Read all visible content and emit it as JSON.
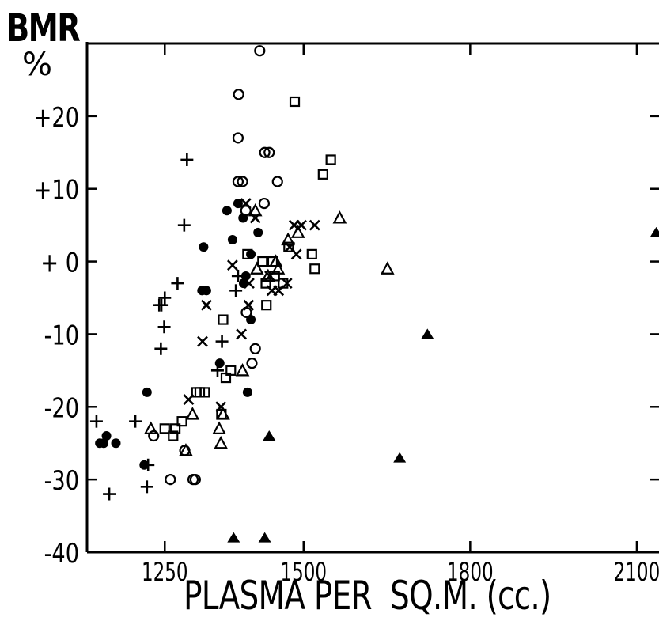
{
  "chart_data": {
    "type": "scatter",
    "ylabel": "BMR",
    "yunit": "%",
    "xlabel": "PLASMA PER  SQ.M. (cc.)",
    "xlim": [
      1110,
      2140
    ],
    "ylim": [
      -40,
      30
    ],
    "xticks": [
      1250,
      1500,
      1800,
      2100
    ],
    "xtick_labels": [
      "1250",
      "1500",
      "1800",
      "2100"
    ],
    "yticks": [
      20,
      10,
      0,
      -10,
      -20,
      -30,
      -40
    ],
    "ytick_labels": [
      "+20",
      "+10",
      "+ 0",
      "-10",
      "-20",
      "-30",
      "-40"
    ],
    "series": [
      {
        "marker": "plus",
        "points": [
          [
            1127,
            -22
          ],
          [
            1150,
            -32
          ],
          [
            1197,
            -22
          ],
          [
            1220,
            -28
          ],
          [
            1218,
            -31
          ],
          [
            1240,
            -6
          ],
          [
            1244,
            -6
          ],
          [
            1250,
            -5
          ],
          [
            1243,
            -12
          ],
          [
            1249,
            -9
          ],
          [
            1290,
            14
          ],
          [
            1285,
            5
          ],
          [
            1273,
            -3
          ],
          [
            1353,
            -11
          ],
          [
            1345,
            -15
          ],
          [
            1378,
            -4
          ],
          [
            1382,
            -2
          ]
        ]
      },
      {
        "marker": "filled-circle",
        "points": [
          [
            1133,
            -25
          ],
          [
            1140,
            -25
          ],
          [
            1145,
            -24
          ],
          [
            1162,
            -25
          ],
          [
            1213,
            -28
          ],
          [
            1218,
            -18
          ],
          [
            1320,
            2
          ],
          [
            1317,
            -4
          ],
          [
            1325,
            -4
          ],
          [
            1349,
            -14
          ],
          [
            1362,
            7
          ],
          [
            1382,
            8
          ],
          [
            1372,
            3
          ],
          [
            1391,
            6
          ],
          [
            1396,
            -2
          ],
          [
            1405,
            1
          ],
          [
            1405,
            -8
          ],
          [
            1418,
            4
          ],
          [
            1392,
            -3
          ],
          [
            1399,
            -18
          ]
        ]
      },
      {
        "marker": "circle",
        "points": [
          [
            1230,
            -24
          ],
          [
            1260,
            -30
          ],
          [
            1286,
            -26
          ],
          [
            1301,
            -30
          ],
          [
            1305,
            -30
          ],
          [
            1383,
            23
          ],
          [
            1382,
            17
          ],
          [
            1382,
            11
          ],
          [
            1390,
            11
          ],
          [
            1396,
            7
          ],
          [
            1397,
            -7
          ],
          [
            1421,
            29
          ],
          [
            1430,
            15
          ],
          [
            1438,
            15
          ],
          [
            1453,
            11
          ],
          [
            1429,
            8
          ],
          [
            1413,
            -12
          ],
          [
            1407,
            -14
          ]
        ]
      },
      {
        "marker": "cross",
        "points": [
          [
            1293,
            -19
          ],
          [
            1325,
            -6
          ],
          [
            1318,
            -11
          ],
          [
            1351,
            -20
          ],
          [
            1372,
            -0.5
          ],
          [
            1388,
            -10
          ],
          [
            1396,
            8
          ],
          [
            1401,
            -6
          ],
          [
            1402,
            -3
          ],
          [
            1413,
            6
          ],
          [
            1439,
            -2
          ],
          [
            1443,
            -4
          ],
          [
            1455,
            -4
          ],
          [
            1470,
            -3
          ],
          [
            1475,
            2
          ],
          [
            1483,
            5
          ],
          [
            1487,
            1
          ],
          [
            1496,
            5
          ],
          [
            1520,
            5
          ]
        ]
      },
      {
        "marker": "square",
        "points": [
          [
            1250,
            -23
          ],
          [
            1265,
            -24
          ],
          [
            1269,
            -23
          ],
          [
            1281,
            -22
          ],
          [
            1307,
            -18
          ],
          [
            1313,
            -18
          ],
          [
            1322,
            -18
          ],
          [
            1352,
            -21
          ],
          [
            1355,
            -8
          ],
          [
            1360,
            -16
          ],
          [
            1369,
            -15
          ],
          [
            1399,
            1
          ],
          [
            1426,
            0
          ],
          [
            1432,
            -3
          ],
          [
            1433,
            -6
          ],
          [
            1444,
            0
          ],
          [
            1448,
            -2
          ],
          [
            1463,
            -3
          ],
          [
            1473,
            2
          ],
          [
            1484,
            22
          ],
          [
            1515,
            1
          ],
          [
            1520,
            -1
          ],
          [
            1535,
            12
          ],
          [
            1549,
            14
          ]
        ]
      },
      {
        "marker": "triangle",
        "points": [
          [
            1225,
            -23
          ],
          [
            1288,
            -26
          ],
          [
            1300,
            -21
          ],
          [
            1348,
            -23
          ],
          [
            1351,
            -25
          ],
          [
            1355,
            -21
          ],
          [
            1390,
            -15
          ],
          [
            1413,
            7
          ],
          [
            1416,
            -1
          ],
          [
            1436,
            -2
          ],
          [
            1450,
            0
          ],
          [
            1454,
            -1
          ],
          [
            1472,
            3
          ],
          [
            1490,
            4
          ],
          [
            1565,
            6
          ],
          [
            1651,
            -1
          ]
        ]
      },
      {
        "marker": "filled-triangle",
        "points": [
          [
            1374,
            -38
          ],
          [
            1430,
            -38
          ],
          [
            1438,
            -24
          ],
          [
            1673,
            -27
          ],
          [
            1723,
            -10
          ],
          [
            2135,
            4
          ]
        ]
      }
    ]
  }
}
